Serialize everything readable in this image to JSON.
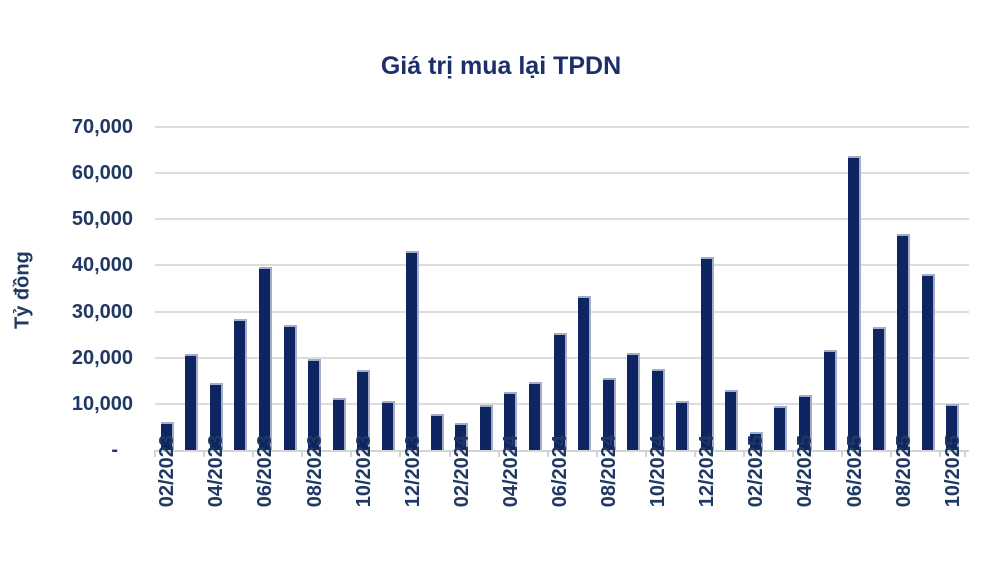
{
  "chart_title": "Giá trị mua lại TPDN",
  "chart_data": {
    "type": "bar",
    "title": "Giá trị mua lại TPDN",
    "xlabel": "",
    "ylabel": "Tỷ đồng",
    "categories": [
      "02/2023",
      "03/2023",
      "04/2023",
      "05/2023",
      "06/2023",
      "07/2023",
      "08/2023",
      "09/2023",
      "10/2023",
      "11/2023",
      "12/2023",
      "01/2024",
      "02/2024",
      "03/2024",
      "04/2024",
      "05/2024",
      "06/2024",
      "07/2024",
      "08/2024",
      "09/2024",
      "10/2024",
      "11/2024",
      "12/2024",
      "01/2025",
      "02/2025",
      "03/2025",
      "04/2025",
      "05/2025",
      "06/2025",
      "07/2025",
      "08/2025",
      "09/2025",
      "10/2025"
    ],
    "values": [
      6000,
      20900,
      14500,
      28300,
      39700,
      27100,
      19800,
      11200,
      17300,
      10700,
      43200,
      7900,
      5900,
      9700,
      12600,
      14700,
      25400,
      33400,
      15700,
      21000,
      17600,
      10700,
      41800,
      13000,
      3800,
      9500,
      12000,
      21700,
      63700,
      26700,
      46800,
      38100,
      9900
    ],
    "x_tick_interval": 2,
    "x_tick_labels": [
      "02/2023",
      "04/2023",
      "06/2023",
      "08/2023",
      "10/2023",
      "12/2023",
      "02/2024",
      "04/2024",
      "06/2024",
      "08/2024",
      "10/2024",
      "12/2024",
      "02/2025",
      "04/2025",
      "06/2025",
      "08/2025",
      "10/2025"
    ],
    "y_ticks": [
      0,
      10000,
      20000,
      30000,
      40000,
      50000,
      60000,
      70000
    ],
    "y_tick_labels": [
      "-",
      "10,000",
      "20,000",
      "30,000",
      "40,000",
      "50,000",
      "60,000",
      "70,000"
    ],
    "ylim": [
      0,
      70000
    ],
    "grid": true,
    "legend": false,
    "colors": {
      "bar": "#0d2560",
      "bar_edge": "#a3adc9",
      "grid": "#dcdcdc",
      "axis": "#d4d4d4",
      "label": "#1f3864",
      "title": "#1c2f6b",
      "background": "#ffffff"
    }
  }
}
